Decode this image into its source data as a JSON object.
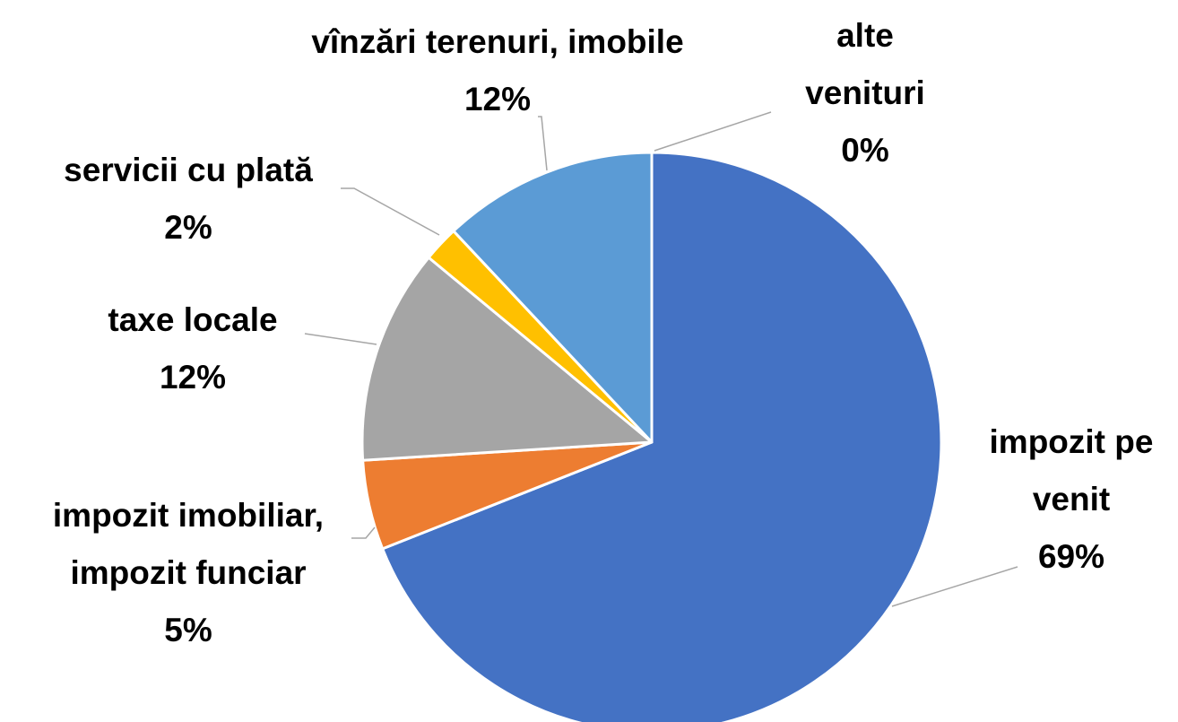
{
  "chart_data": {
    "type": "pie",
    "categories": [
      "impozit pe venit",
      "impozit imobiliar, impozit funciar",
      "taxe locale",
      "servicii cu plată",
      "vînzări terenuri, imobile",
      "alte venituri"
    ],
    "values": [
      69,
      5,
      12,
      2,
      12,
      0
    ],
    "value_labels": [
      "69%",
      "5%",
      "12%",
      "2%",
      "12%",
      "0%"
    ],
    "colors": [
      "#4472c4",
      "#ed7d31",
      "#a5a5a5",
      "#ffc000",
      "#5b9bd5",
      "#264478"
    ]
  }
}
